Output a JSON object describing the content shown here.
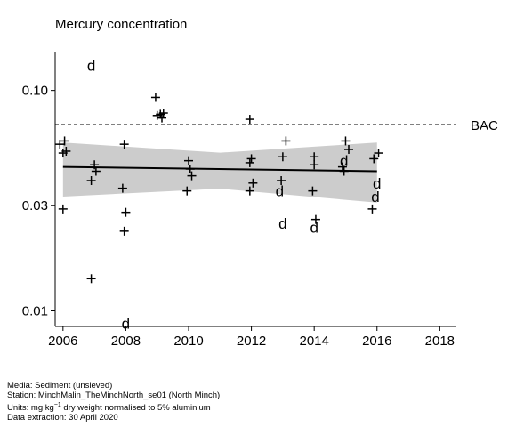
{
  "chart_data": {
    "type": "scatter",
    "title": "Mercury concentration",
    "xlabel": "",
    "ylabel": "",
    "y_scale": "log",
    "xlim": [
      2005.75,
      2018.5
    ],
    "ylim": [
      0.0085,
      0.15
    ],
    "x_ticks": [
      2006,
      2008,
      2010,
      2012,
      2014,
      2016,
      2018
    ],
    "y_ticks": [
      {
        "value": 0.01,
        "label": "0.01"
      },
      {
        "value": 0.03,
        "label": "0.03"
      },
      {
        "value": 0.1,
        "label": "0.10"
      }
    ],
    "reference_line": {
      "label": "BAC",
      "value": 0.07
    },
    "trend": {
      "x": [
        2006,
        2016
      ],
      "y": [
        0.045,
        0.043
      ],
      "band_upper": [
        0.058,
        0.058
      ],
      "band_lower": [
        0.033,
        0.031
      ]
    },
    "points": [
      {
        "x": 2005.9,
        "y": 0.057,
        "marker": "+"
      },
      {
        "x": 2006.0,
        "y": 0.052,
        "marker": "+"
      },
      {
        "x": 2006.05,
        "y": 0.059,
        "marker": "+"
      },
      {
        "x": 2006.1,
        "y": 0.053,
        "marker": "+"
      },
      {
        "x": 2006.0,
        "y": 0.029,
        "marker": "+"
      },
      {
        "x": 2006.9,
        "y": 0.13,
        "marker": "d"
      },
      {
        "x": 2006.9,
        "y": 0.039,
        "marker": "+"
      },
      {
        "x": 2007.0,
        "y": 0.046,
        "marker": "+"
      },
      {
        "x": 2007.05,
        "y": 0.043,
        "marker": "+"
      },
      {
        "x": 2006.9,
        "y": 0.014,
        "marker": "+"
      },
      {
        "x": 2007.95,
        "y": 0.057,
        "marker": "+"
      },
      {
        "x": 2007.9,
        "y": 0.036,
        "marker": "+"
      },
      {
        "x": 2008.0,
        "y": 0.028,
        "marker": "+"
      },
      {
        "x": 2007.95,
        "y": 0.023,
        "marker": "+"
      },
      {
        "x": 2008.0,
        "y": 0.0088,
        "marker": "d"
      },
      {
        "x": 2008.95,
        "y": 0.093,
        "marker": "+"
      },
      {
        "x": 2009.0,
        "y": 0.077,
        "marker": "+"
      },
      {
        "x": 2009.1,
        "y": 0.078,
        "marker": "+"
      },
      {
        "x": 2009.15,
        "y": 0.075,
        "marker": "+"
      },
      {
        "x": 2009.2,
        "y": 0.079,
        "marker": "+"
      },
      {
        "x": 2010.0,
        "y": 0.048,
        "marker": "+"
      },
      {
        "x": 2010.05,
        "y": 0.044,
        "marker": "+"
      },
      {
        "x": 2010.1,
        "y": 0.041,
        "marker": "+"
      },
      {
        "x": 2009.95,
        "y": 0.035,
        "marker": "+"
      },
      {
        "x": 2011.95,
        "y": 0.074,
        "marker": "+"
      },
      {
        "x": 2012.0,
        "y": 0.049,
        "marker": "+"
      },
      {
        "x": 2011.95,
        "y": 0.047,
        "marker": "+"
      },
      {
        "x": 2012.05,
        "y": 0.038,
        "marker": "+"
      },
      {
        "x": 2011.95,
        "y": 0.035,
        "marker": "+"
      },
      {
        "x": 2013.1,
        "y": 0.059,
        "marker": "+"
      },
      {
        "x": 2013.0,
        "y": 0.05,
        "marker": "+"
      },
      {
        "x": 2012.95,
        "y": 0.039,
        "marker": "+"
      },
      {
        "x": 2012.9,
        "y": 0.035,
        "marker": "d"
      },
      {
        "x": 2013.0,
        "y": 0.025,
        "marker": "d"
      },
      {
        "x": 2014.0,
        "y": 0.05,
        "marker": "+"
      },
      {
        "x": 2014.0,
        "y": 0.046,
        "marker": "+"
      },
      {
        "x": 2013.95,
        "y": 0.035,
        "marker": "+"
      },
      {
        "x": 2014.05,
        "y": 0.026,
        "marker": "+"
      },
      {
        "x": 2014.0,
        "y": 0.024,
        "marker": "d"
      },
      {
        "x": 2015.0,
        "y": 0.059,
        "marker": "+"
      },
      {
        "x": 2015.1,
        "y": 0.054,
        "marker": "+"
      },
      {
        "x": 2014.95,
        "y": 0.048,
        "marker": "d"
      },
      {
        "x": 2014.9,
        "y": 0.045,
        "marker": "+"
      },
      {
        "x": 2014.95,
        "y": 0.043,
        "marker": "+"
      },
      {
        "x": 2016.05,
        "y": 0.052,
        "marker": "+"
      },
      {
        "x": 2015.9,
        "y": 0.049,
        "marker": "+"
      },
      {
        "x": 2016.0,
        "y": 0.038,
        "marker": "d"
      },
      {
        "x": 2015.95,
        "y": 0.033,
        "marker": "d"
      },
      {
        "x": 2015.85,
        "y": 0.029,
        "marker": "+"
      }
    ]
  },
  "footer": {
    "media": "Media: Sediment (unsieved)",
    "station": "Station: MinchMalin_TheMinchNorth_se01 (North Minch)",
    "units_prefix": "Units:  mg kg",
    "units_exp": "−1",
    "units_suffix": " dry weight normalised to 5% aluminium",
    "extraction": "Data extraction: 30 April 2020"
  }
}
